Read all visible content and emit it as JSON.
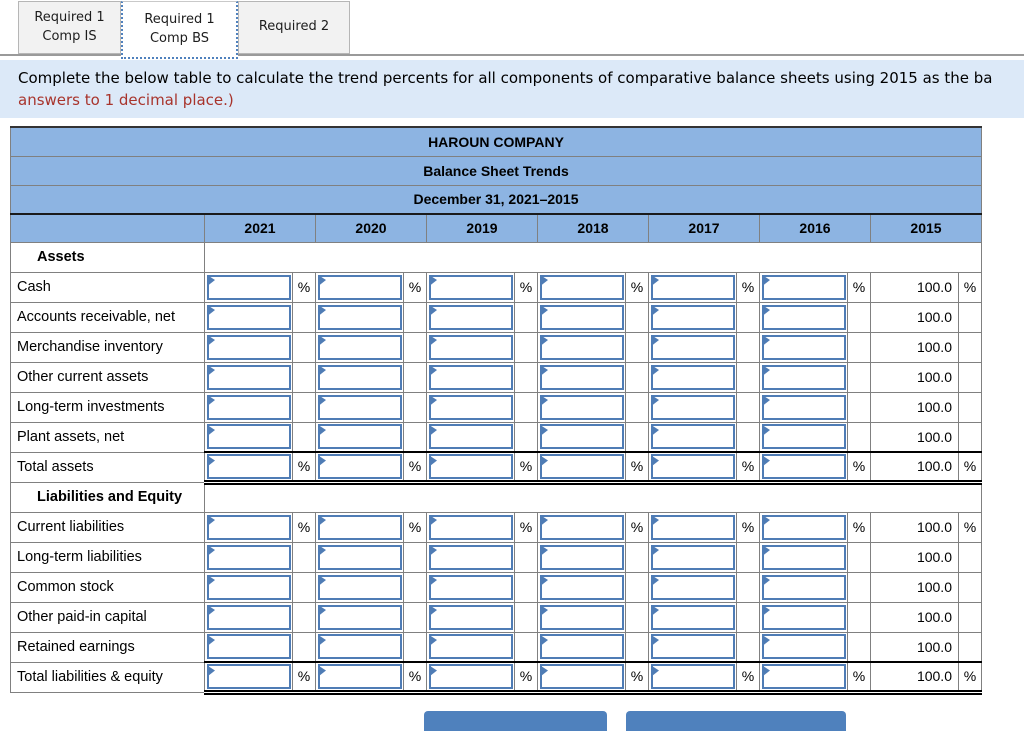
{
  "tabs": [
    {
      "line1": "Required 1",
      "line2": "Comp IS",
      "active": false
    },
    {
      "line1": "Required 1",
      "line2": "Comp BS",
      "active": true
    },
    {
      "line1": "Required 2",
      "line2": "",
      "active": false
    }
  ],
  "instructions": {
    "line1_black": "Complete the below table to calculate the trend percents for all components of comparative balance sheets using 2015 as the ba",
    "line2_red": "answers to 1 decimal place.)"
  },
  "table": {
    "title1": "HAROUN COMPANY",
    "title2": "Balance Sheet Trends",
    "title3": "December 31, 2021–2015",
    "years": [
      "2021",
      "2020",
      "2019",
      "2018",
      "2017",
      "2016",
      "2015"
    ],
    "base_year_value": "100.0",
    "percent_sign": "%",
    "input_value": "",
    "sections": [
      {
        "header": "Assets",
        "rows": [
          {
            "label": "Cash",
            "pct": true,
            "total": false
          },
          {
            "label": "Accounts receivable, net",
            "pct": false,
            "total": false
          },
          {
            "label": "Merchandise inventory",
            "pct": false,
            "total": false
          },
          {
            "label": "Other current assets",
            "pct": false,
            "total": false
          },
          {
            "label": "Long-term investments",
            "pct": false,
            "total": false
          },
          {
            "label": "Plant assets, net",
            "pct": false,
            "total": false
          },
          {
            "label": "Total assets",
            "pct": true,
            "total": true
          }
        ]
      },
      {
        "header": "Liabilities and Equity",
        "rows": [
          {
            "label": "Current liabilities",
            "pct": true,
            "total": false
          },
          {
            "label": "Long-term liabilities",
            "pct": false,
            "total": false
          },
          {
            "label": "Common stock",
            "pct": false,
            "total": false
          },
          {
            "label": "Other paid-in capital",
            "pct": false,
            "total": false
          },
          {
            "label": "Retained earnings",
            "pct": false,
            "total": false
          },
          {
            "label": "Total liabilities & equity",
            "pct": true,
            "total": true
          }
        ]
      }
    ]
  },
  "footer": {
    "left_button_label": "",
    "right_button_label": ""
  },
  "colors": {
    "header_blue": "#8db4e2",
    "panel_blue": "#dce9f8",
    "input_border_blue": "#4f7cb5",
    "button_blue": "#4f81bd",
    "red_text": "#a8342c",
    "grid_gray": "#808080"
  }
}
